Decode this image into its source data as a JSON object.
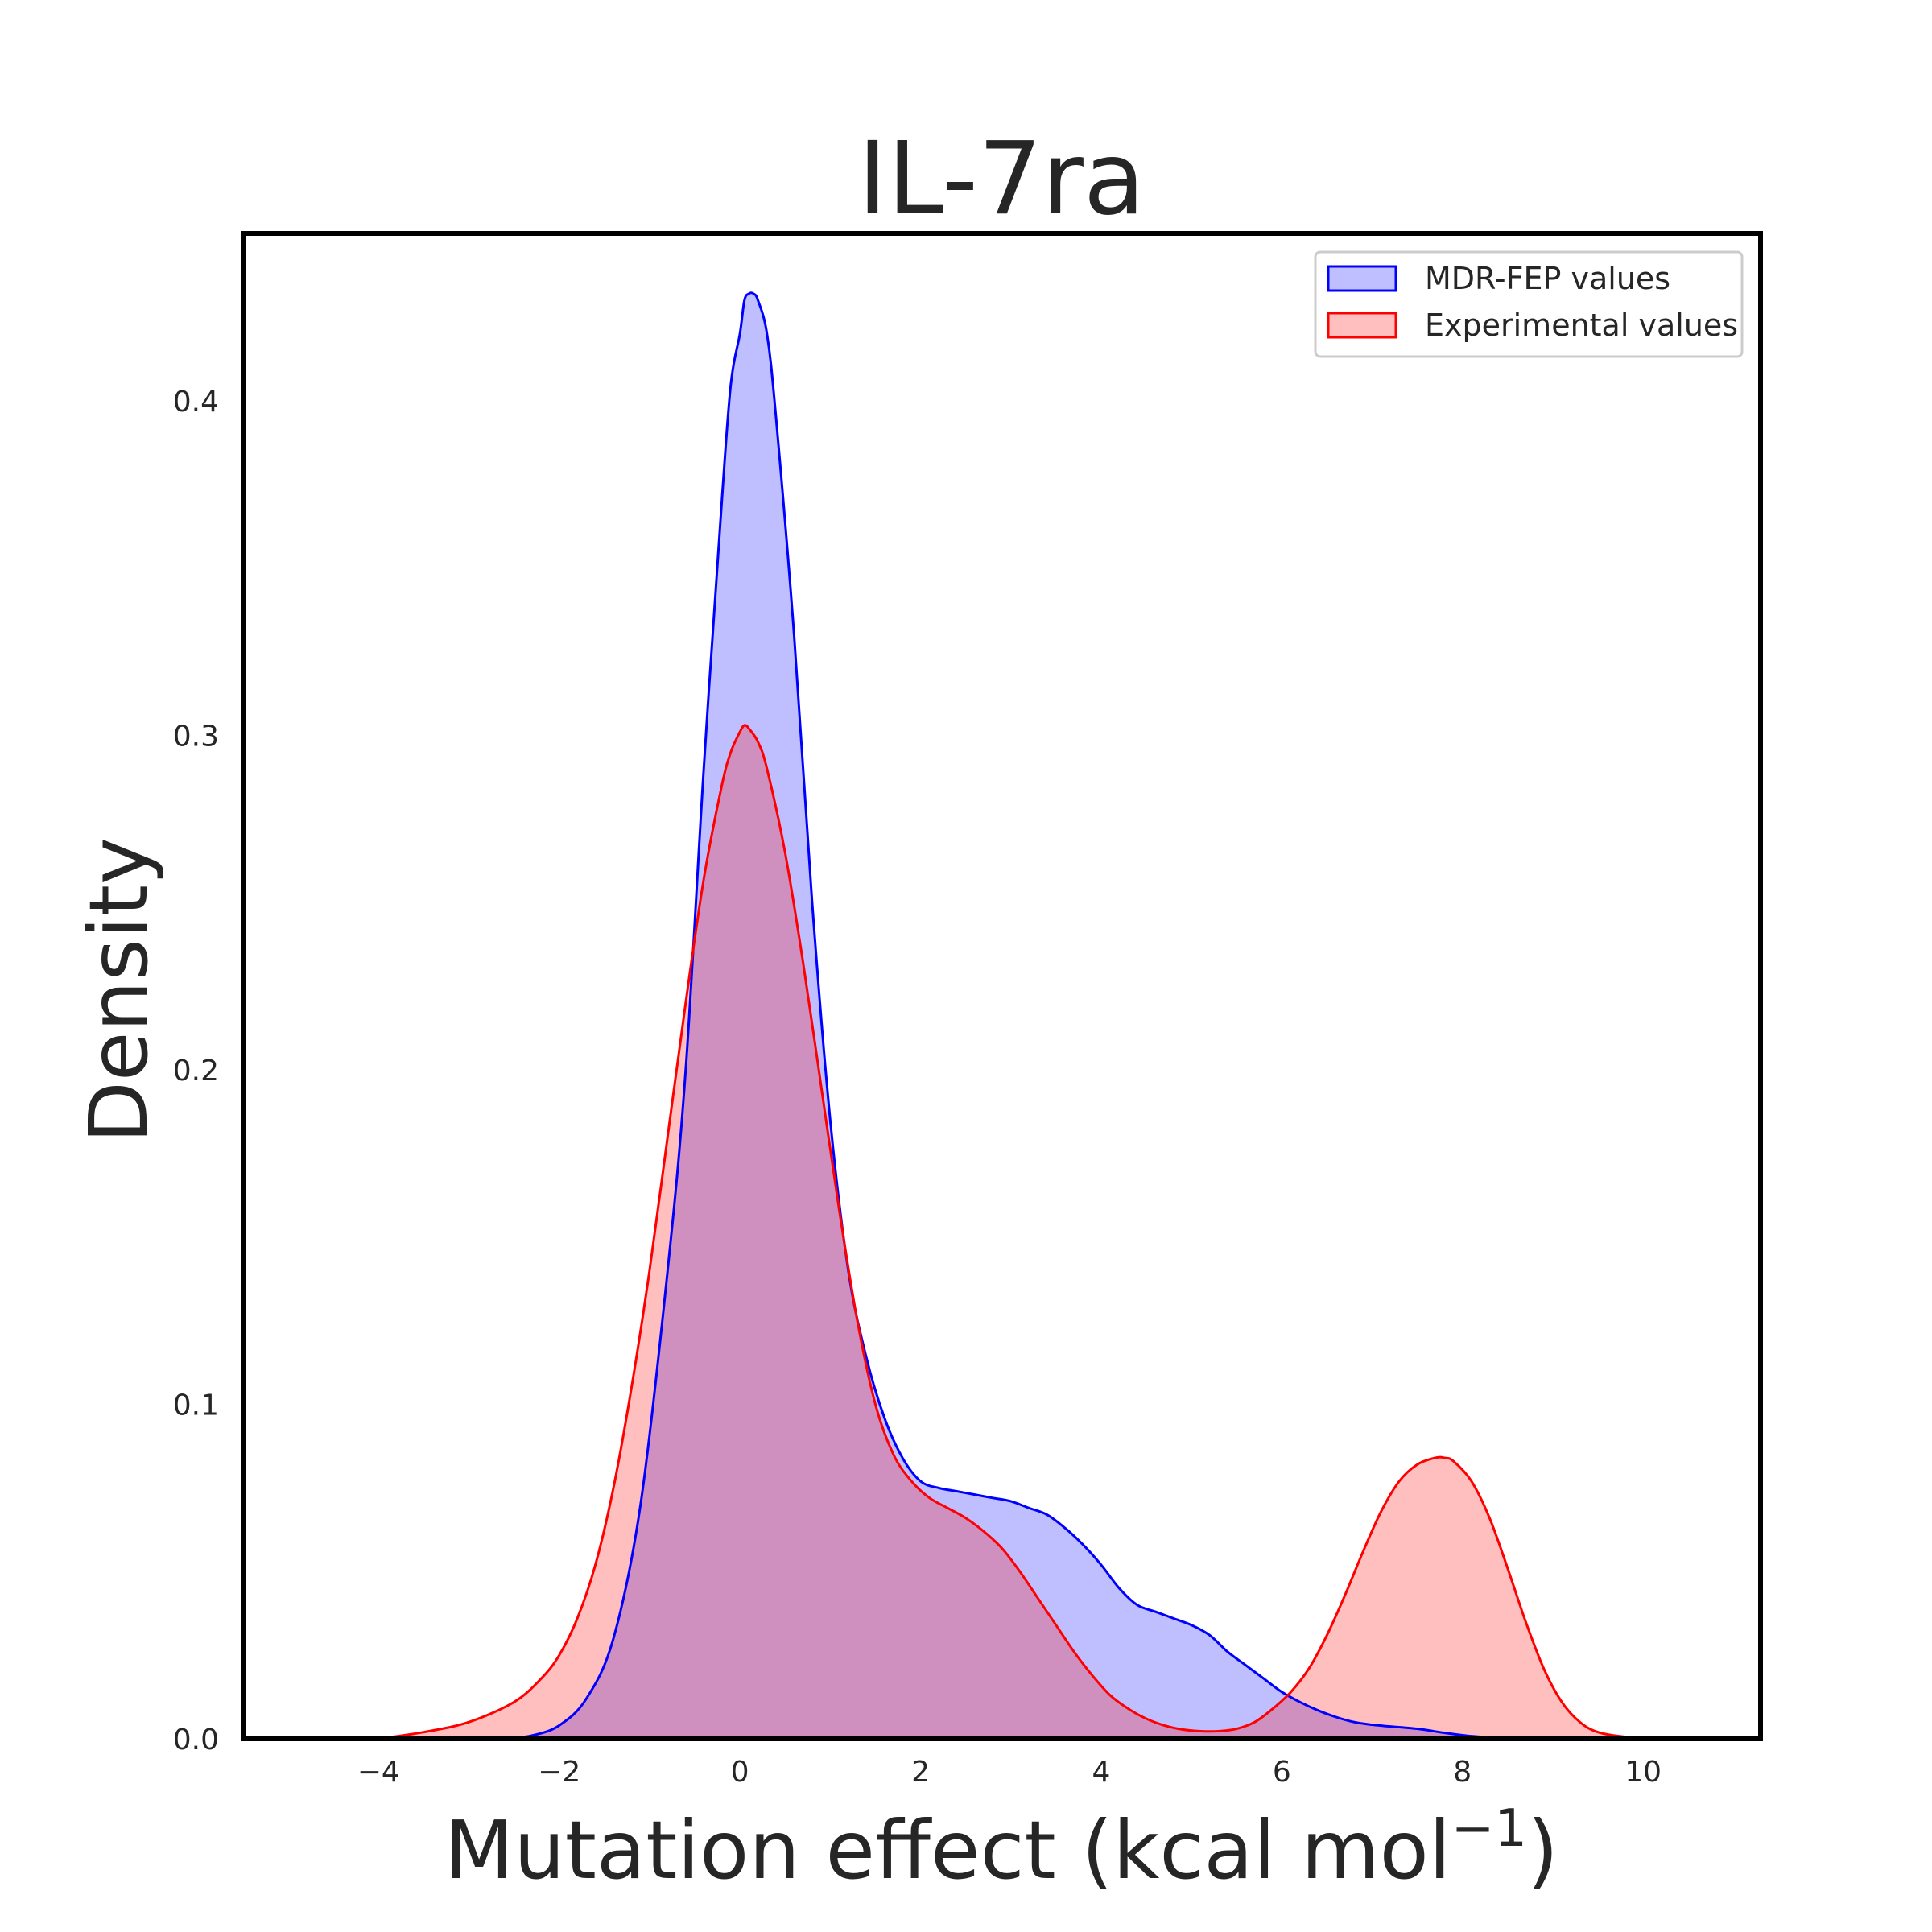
{
  "chart_data": {
    "type": "area",
    "title": "IL-7ra",
    "xlabel": "Mutation effect (kcal mol",
    "xlabel_sup": "−1",
    "xlabel_close": ")",
    "ylabel": "Density",
    "xlim": [
      -5.5,
      11.3
    ],
    "ylim": [
      0,
      0.45
    ],
    "xticks": [
      -4,
      -2,
      0,
      2,
      4,
      6,
      8,
      10
    ],
    "xtick_labels": [
      "−4",
      "−2",
      "0",
      "2",
      "4",
      "6",
      "8",
      "10"
    ],
    "yticks": [
      0.0,
      0.1,
      0.2,
      0.3,
      0.4
    ],
    "ytick_labels": [
      "0.0",
      "0.1",
      "0.2",
      "0.3",
      "0.4"
    ],
    "grid": false,
    "legend_position": "top-right",
    "series": [
      {
        "name": "MDR-FEP values",
        "line_color": "#0000ff",
        "fill_color": "#0000ff",
        "fill_opacity": 0.25,
        "x": [
          -2.6,
          -2.3,
          -2.0,
          -1.7,
          -1.4,
          -1.1,
          -0.8,
          -0.6,
          -0.4,
          -0.2,
          -0.1,
          0.0,
          0.05,
          0.1,
          0.15,
          0.2,
          0.3,
          0.4,
          0.6,
          0.8,
          1.0,
          1.2,
          1.4,
          1.6,
          1.8,
          2.0,
          2.2,
          2.4,
          2.6,
          2.8,
          3.0,
          3.2,
          3.4,
          3.6,
          3.8,
          4.0,
          4.2,
          4.4,
          4.6,
          4.8,
          5.0,
          5.2,
          5.4,
          5.6,
          5.8,
          6.0,
          6.2,
          6.4,
          6.6,
          6.8,
          7.0,
          7.2,
          7.5,
          7.8,
          8.1,
          8.4,
          8.8,
          9.2,
          9.5
        ],
        "y": [
          0.0,
          0.001,
          0.004,
          0.012,
          0.03,
          0.07,
          0.14,
          0.2,
          0.29,
          0.37,
          0.405,
          0.42,
          0.43,
          0.432,
          0.432,
          0.43,
          0.42,
          0.395,
          0.33,
          0.25,
          0.185,
          0.14,
          0.114,
          0.096,
          0.084,
          0.077,
          0.075,
          0.074,
          0.073,
          0.072,
          0.071,
          0.069,
          0.067,
          0.063,
          0.058,
          0.052,
          0.045,
          0.04,
          0.038,
          0.036,
          0.034,
          0.031,
          0.026,
          0.022,
          0.018,
          0.014,
          0.011,
          0.0085,
          0.0065,
          0.005,
          0.0042,
          0.0037,
          0.003,
          0.0018,
          0.0008,
          0.0003,
          0.0001,
          0.0,
          0.0
        ]
      },
      {
        "name": "Experimental values",
        "line_color": "#ff0000",
        "fill_color": "#ff0000",
        "fill_opacity": 0.25,
        "x": [
          -4.0,
          -3.5,
          -3.0,
          -2.5,
          -2.2,
          -2.0,
          -1.8,
          -1.6,
          -1.4,
          -1.2,
          -1.0,
          -0.8,
          -0.6,
          -0.4,
          -0.2,
          -0.1,
          0.0,
          0.05,
          0.1,
          0.2,
          0.3,
          0.5,
          0.7,
          0.9,
          1.1,
          1.3,
          1.5,
          1.7,
          1.9,
          2.1,
          2.3,
          2.5,
          2.7,
          2.9,
          3.1,
          3.3,
          3.5,
          3.7,
          3.9,
          4.1,
          4.3,
          4.5,
          4.7,
          4.9,
          5.1,
          5.3,
          5.5,
          5.7,
          5.9,
          6.1,
          6.3,
          6.5,
          6.7,
          6.9,
          7.1,
          7.3,
          7.5,
          7.7,
          7.8,
          7.9,
          8.1,
          8.3,
          8.5,
          8.7,
          8.9,
          9.1,
          9.3,
          9.5,
          9.8,
          10.2,
          10.5
        ],
        "y": [
          0.0,
          0.002,
          0.005,
          0.011,
          0.018,
          0.025,
          0.036,
          0.052,
          0.075,
          0.105,
          0.14,
          0.18,
          0.22,
          0.257,
          0.285,
          0.295,
          0.301,
          0.303,
          0.302,
          0.298,
          0.29,
          0.265,
          0.232,
          0.195,
          0.158,
          0.125,
          0.1,
          0.085,
          0.077,
          0.072,
          0.069,
          0.066,
          0.062,
          0.057,
          0.05,
          0.042,
          0.034,
          0.026,
          0.019,
          0.013,
          0.009,
          0.006,
          0.004,
          0.0028,
          0.0023,
          0.0023,
          0.003,
          0.005,
          0.009,
          0.014,
          0.021,
          0.031,
          0.043,
          0.056,
          0.068,
          0.077,
          0.082,
          0.084,
          0.084,
          0.083,
          0.077,
          0.066,
          0.051,
          0.035,
          0.021,
          0.011,
          0.005,
          0.002,
          0.0006,
          0.0001,
          0.0
        ]
      }
    ]
  }
}
